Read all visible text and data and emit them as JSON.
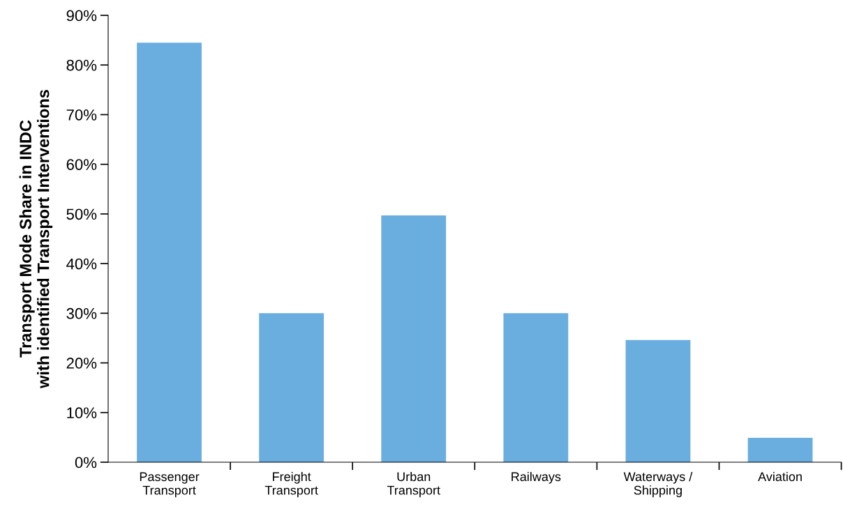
{
  "chart_data": {
    "type": "bar",
    "ylabel": "Transport Mode Share in INDC\nwith identified Transport Interventions",
    "categories": [
      "Passenger\nTransport",
      "Freight\nTransport",
      "Urban\nTransport",
      "Railways",
      "Waterways /\nShipping",
      "Aviation"
    ],
    "values": [
      84.5,
      30,
      49.7,
      30,
      24.6,
      4.9
    ],
    "color": "#6aaddf",
    "ylim": [
      0,
      90
    ],
    "yticks": [
      {
        "value": 0,
        "label": "0%"
      },
      {
        "value": 10,
        "label": "10%"
      },
      {
        "value": 20,
        "label": "20%"
      },
      {
        "value": 30,
        "label": "30%"
      },
      {
        "value": 40,
        "label": "40%"
      },
      {
        "value": 50,
        "label": "50%"
      },
      {
        "value": 60,
        "label": "60%"
      },
      {
        "value": 70,
        "label": "70%"
      },
      {
        "value": 80,
        "label": "80%"
      },
      {
        "value": 90,
        "label": "90%"
      }
    ],
    "grid": false,
    "legend": false
  }
}
